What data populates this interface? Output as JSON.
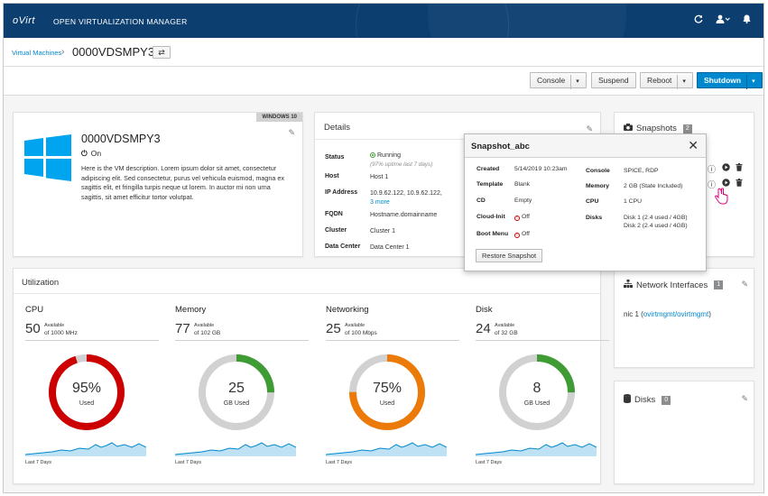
{
  "masthead": {
    "logo": "oVirt",
    "title": "OPEN VIRTUALIZATION MANAGER",
    "icons": [
      "refresh-icon",
      "user-icon",
      "bell-icon"
    ]
  },
  "breadcrumb": {
    "parent": "Virtual Machines",
    "current": "0000VDSMPY3"
  },
  "toolbar": {
    "console": "Console",
    "suspend": "Suspend",
    "reboot": "Reboot",
    "shutdown": "Shutdown"
  },
  "vm": {
    "os_badge": "WINDOWS 10",
    "name": "0000VDSMPY3",
    "status": "On",
    "description": "Here is the VM description. Lorem ipsum dolor sit amet, consectetur adipiscing elit. Sed consectetur, purus vel vehicula euismod, magna ex sagittis elit, et fringilla turpis neque ut lorem. In auctor mi non urna sagittis, sit amet efficitur tortor volutpat."
  },
  "details": {
    "title": "Details",
    "rows": [
      {
        "label": "Status",
        "value": "Running",
        "note": "(97% uptime last 7 days)"
      },
      {
        "label": "Host",
        "value": "Host 1"
      },
      {
        "label": "IP Address",
        "value": "10.9.62.122, 10.9.62.122,",
        "link": "3 more"
      },
      {
        "label": "FQDN",
        "value": "Hostname.domainname"
      },
      {
        "label": "Cluster",
        "value": "Cluster 1"
      },
      {
        "label": "Data Center",
        "value": "Data Center 1"
      }
    ]
  },
  "snapshots": {
    "title": "Snapshots",
    "count": "2"
  },
  "network": {
    "title": "Network Interfaces",
    "count": "1",
    "item_prefix": "nic 1 (",
    "item_link": "ovirtmgmt/ovirtmgmt",
    "item_suffix": ")"
  },
  "disks": {
    "title": "Disks",
    "count": "0"
  },
  "utilization": {
    "title": "Utilization",
    "period": "Last 7 Days",
    "gauges": [
      {
        "title": "CPU",
        "available": "50",
        "avail_label": "Available",
        "of": "of 1000 MHz",
        "center": "95%",
        "sub": "Used",
        "fraction": 0.95,
        "color": "#cc0000"
      },
      {
        "title": "Memory",
        "available": "77",
        "avail_label": "Available",
        "of": "of 102 GB",
        "center": "25",
        "sub": "GB Used",
        "fraction": 0.25,
        "color": "#3f9c35"
      },
      {
        "title": "Networking",
        "available": "25",
        "avail_label": "Available",
        "of": "of 100 Mbps",
        "center": "75%",
        "sub": "Used",
        "fraction": 0.75,
        "color": "#ec7a08"
      },
      {
        "title": "Disk",
        "available": "24",
        "avail_label": "Available",
        "of": "of 32 GB",
        "center": "8",
        "sub": "GB Used",
        "fraction": 0.25,
        "color": "#3f9c35"
      }
    ]
  },
  "popover": {
    "title": "Snapshot_abc",
    "left": [
      {
        "label": "Created",
        "value": "5/14/2019 10:23am"
      },
      {
        "label": "Template",
        "value": "Blank"
      },
      {
        "label": "CD",
        "value": "Empty"
      },
      {
        "label": "Cloud-Init",
        "value": "Off"
      },
      {
        "label": "Boot Menu",
        "value": "Off"
      }
    ],
    "right": [
      {
        "label": "Console",
        "value": "SPICE, RDP"
      },
      {
        "label": "Memory",
        "value": "2 GB (State Included)"
      },
      {
        "label": "CPU",
        "value": "1 CPU"
      },
      {
        "label": "Disks",
        "value": "Disk 1 (2.4 used / 4GB)",
        "value2": "Disk 2 (2.4 used / 4GB)"
      }
    ],
    "button": "Restore Snapshot"
  },
  "colors": {
    "masthead": "#0c3e6f",
    "link": "#0088ce",
    "primary": "#0088ce",
    "windows": "#00a4ef"
  }
}
